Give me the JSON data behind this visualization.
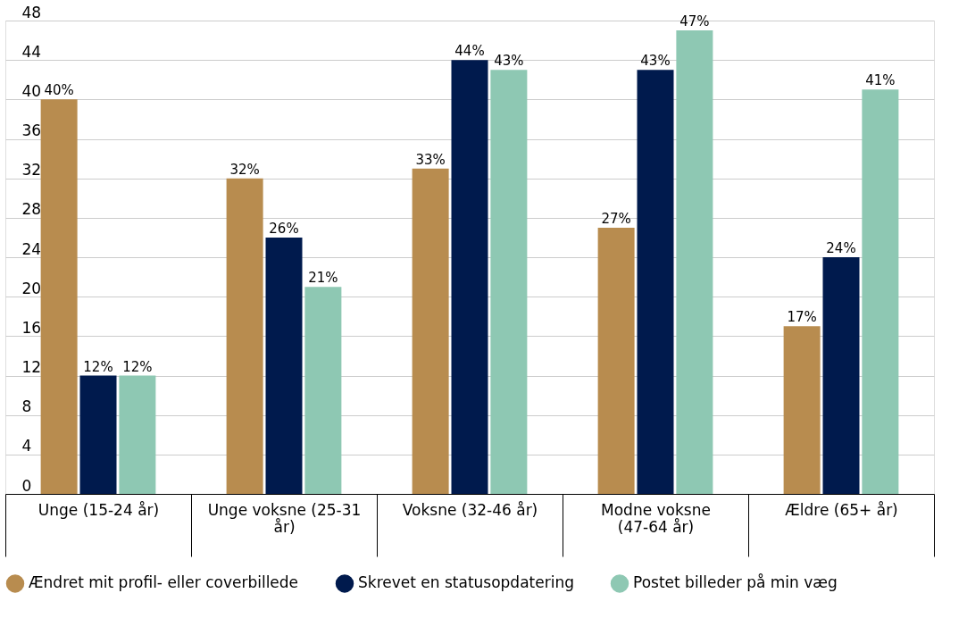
{
  "chart_data": {
    "type": "bar",
    "categories": [
      "Unge (15-24 år)",
      "Unge voksne (25-31 år)",
      "Voksne (32-46 år)",
      "Modne voksne (47-64 år)",
      "Ældre (65+ år)"
    ],
    "series": [
      {
        "name": "Ændret mit profil- eller coverbillede",
        "color": "#b88c4f",
        "values": [
          40,
          32,
          33,
          27,
          17
        ],
        "value_labels": [
          "40%",
          "32%",
          "33%",
          "27%",
          "17%"
        ]
      },
      {
        "name": "Skrevet en statusopdatering",
        "color": "#001a4d",
        "values": [
          12,
          26,
          44,
          43,
          24
        ],
        "value_labels": [
          "12%",
          "26%",
          "44%",
          "43%",
          "24%"
        ]
      },
      {
        "name": "Postet billeder på min væg",
        "color": "#8ec8b3",
        "values": [
          12,
          21,
          43,
          47,
          41
        ],
        "value_labels": [
          "12%",
          "21%",
          "43%",
          "47%",
          "41%"
        ]
      }
    ],
    "ylim": [
      0,
      48
    ],
    "yticks": [
      0,
      4,
      8,
      12,
      16,
      20,
      24,
      28,
      32,
      36,
      40,
      44,
      48
    ],
    "grid": "y",
    "legend": "bottom"
  }
}
